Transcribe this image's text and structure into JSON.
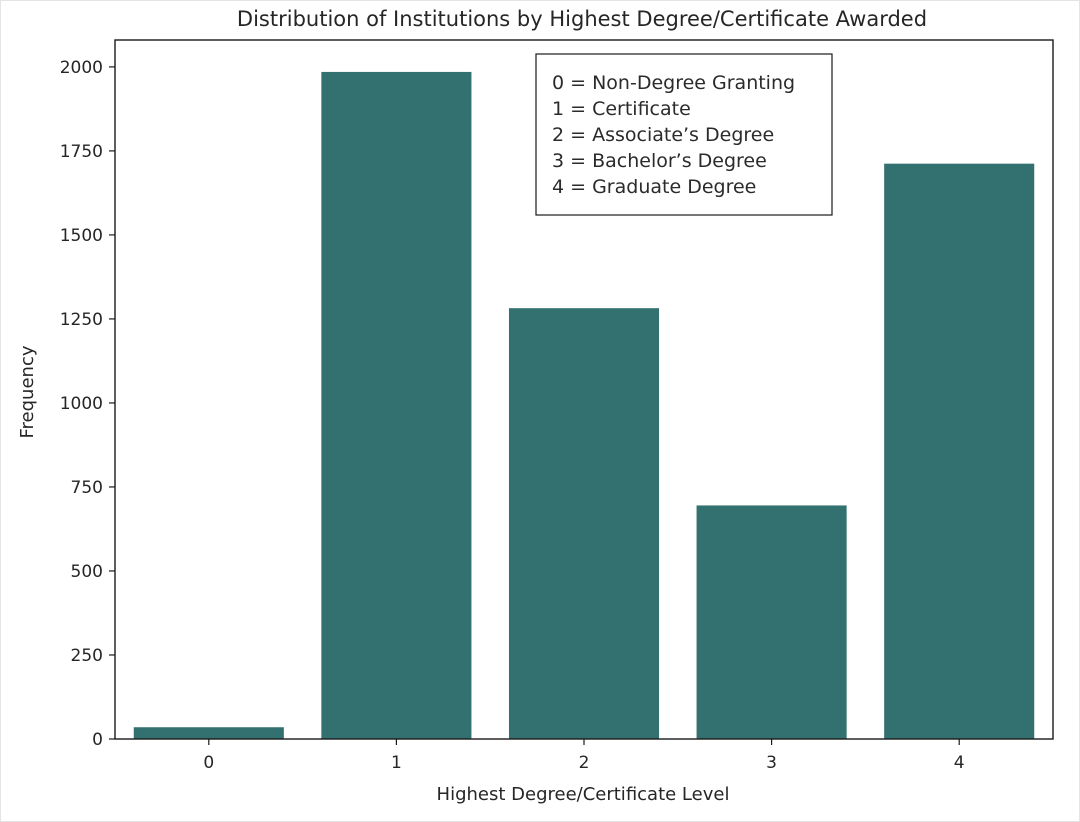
{
  "chart_data": {
    "type": "bar",
    "title": "Distribution of Institutions by Highest Degree/Certificate Awarded",
    "xlabel": "Highest Degree/Certificate Level",
    "ylabel": "Frequency",
    "categories": [
      "0",
      "1",
      "2",
      "3",
      "4"
    ],
    "values": [
      35,
      1985,
      1282,
      695,
      1712
    ],
    "ylim": [
      0,
      2080
    ],
    "yticks": [
      0,
      250,
      500,
      750,
      1000,
      1250,
      1500,
      1750,
      2000
    ],
    "bar_color": "#337170",
    "grid": false,
    "annotation": {
      "placement": "top-center",
      "lines": [
        "0 = Non-Degree Granting",
        "1 = Certificate",
        "2 = Associate’s Degree",
        "3 = Bachelor’s Degree",
        "4 = Graduate Degree"
      ]
    }
  }
}
